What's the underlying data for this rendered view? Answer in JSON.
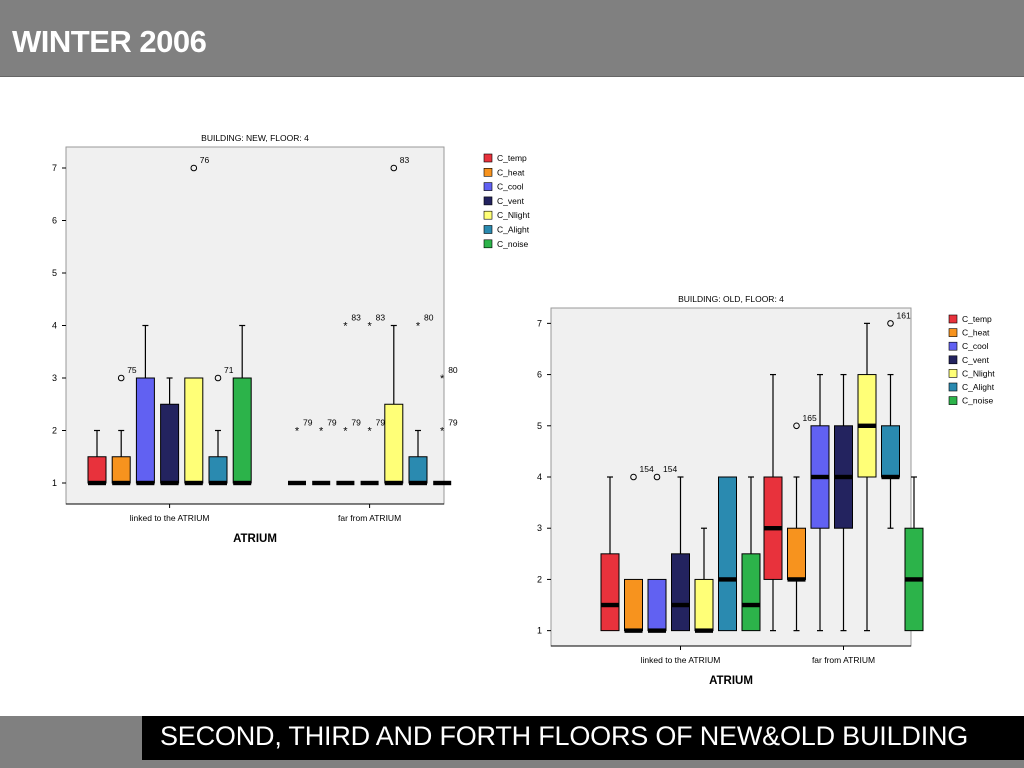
{
  "slide": {
    "title": "WINTER 2006",
    "subtitle": "SECOND, THIRD AND FORTH FLOORS OF NEW&OLD BUILDING"
  },
  "legend": [
    {
      "label": "C_temp",
      "color": "#e8323c"
    },
    {
      "label": "C_heat",
      "color": "#f7931e"
    },
    {
      "label": "C_cool",
      "color": "#6161f2"
    },
    {
      "label": "C_vent",
      "color": "#23235f"
    },
    {
      "label": "C_Nlight",
      "color": "#ffff77"
    },
    {
      "label": "C_Alight",
      "color": "#2a8ab0"
    },
    {
      "label": "C_noise",
      "color": "#2cb34a"
    }
  ],
  "chart_data": [
    {
      "type": "boxplot",
      "title": "BUILDING: NEW, FLOOR: 4",
      "xlabel": "ATRIUM",
      "ylabel": "",
      "categories": [
        "linked to the ATRIUM",
        "far from ATRIUM"
      ],
      "ylim": [
        0.6,
        7.4
      ],
      "yticks": [
        1,
        2,
        3,
        4,
        5,
        6,
        7
      ],
      "series_names": [
        "C_temp",
        "C_heat",
        "C_cool",
        "C_vent",
        "C_Nlight",
        "C_Alight",
        "C_noise"
      ],
      "groups": [
        {
          "category": "linked to the ATRIUM",
          "boxes": [
            {
              "series": "C_temp",
              "min": 1,
              "q1": 1,
              "median": 1,
              "q3": 1.5,
              "max": 2,
              "outliers": []
            },
            {
              "series": "C_heat",
              "min": 1,
              "q1": 1,
              "median": 1,
              "q3": 1.5,
              "max": 2,
              "outliers": [
                {
                  "value": 3,
                  "label": "75",
                  "symbol": "circle"
                }
              ]
            },
            {
              "series": "C_cool",
              "min": 1,
              "q1": 1,
              "median": 1,
              "q3": 3,
              "max": 4,
              "outliers": []
            },
            {
              "series": "C_vent",
              "min": 1,
              "q1": 1,
              "median": 1,
              "q3": 2.5,
              "max": 3,
              "outliers": []
            },
            {
              "series": "C_Nlight",
              "min": 1,
              "q1": 1,
              "median": 1,
              "q3": 3,
              "max": 3,
              "outliers": [
                {
                  "value": 7,
                  "label": "76",
                  "symbol": "circle"
                }
              ]
            },
            {
              "series": "C_Alight",
              "min": 1,
              "q1": 1,
              "median": 1,
              "q3": 1.5,
              "max": 2,
              "outliers": [
                {
                  "value": 3,
                  "label": "71",
                  "symbol": "circle"
                }
              ]
            },
            {
              "series": "C_noise",
              "min": 1,
              "q1": 1,
              "median": 1,
              "q3": 3,
              "max": 4,
              "outliers": []
            }
          ]
        },
        {
          "category": "far from ATRIUM",
          "boxes": [
            {
              "series": "C_temp",
              "min": 1,
              "q1": 1,
              "median": 1,
              "q3": 1,
              "max": 1,
              "outliers": [
                {
                  "value": 2,
                  "label": "79",
                  "symbol": "star"
                }
              ]
            },
            {
              "series": "C_heat",
              "min": 1,
              "q1": 1,
              "median": 1,
              "q3": 1,
              "max": 1,
              "outliers": [
                {
                  "value": 2,
                  "label": "79",
                  "symbol": "star"
                }
              ]
            },
            {
              "series": "C_cool",
              "min": 1,
              "q1": 1,
              "median": 1,
              "q3": 1,
              "max": 1,
              "outliers": [
                {
                  "value": 2,
                  "label": "79",
                  "symbol": "star"
                },
                {
                  "value": 4,
                  "label": "83",
                  "symbol": "star"
                }
              ]
            },
            {
              "series": "C_vent",
              "min": 1,
              "q1": 1,
              "median": 1,
              "q3": 1,
              "max": 1,
              "outliers": [
                {
                  "value": 2,
                  "label": "79",
                  "symbol": "star"
                },
                {
                  "value": 4,
                  "label": "83",
                  "symbol": "star"
                }
              ]
            },
            {
              "series": "C_Nlight",
              "min": 1,
              "q1": 1,
              "median": 1,
              "q3": 2.5,
              "max": 4,
              "outliers": [
                {
                  "value": 7,
                  "label": "83",
                  "symbol": "circle"
                }
              ]
            },
            {
              "series": "C_Alight",
              "min": 1,
              "q1": 1,
              "median": 1,
              "q3": 1.5,
              "max": 2,
              "outliers": [
                {
                  "value": 4,
                  "label": "80",
                  "symbol": "star"
                }
              ]
            },
            {
              "series": "C_noise",
              "min": 1,
              "q1": 1,
              "median": 1,
              "q3": 1,
              "max": 1,
              "outliers": [
                {
                  "value": 2,
                  "label": "79",
                  "symbol": "star"
                },
                {
                  "value": 3,
                  "label": "80",
                  "symbol": "star"
                }
              ]
            }
          ]
        }
      ]
    },
    {
      "type": "boxplot",
      "title": "BUILDING: OLD, FLOOR: 4",
      "xlabel": "ATRIUM",
      "ylabel": "",
      "categories": [
        "linked to the ATRIUM",
        "far from ATRIUM"
      ],
      "ylim": [
        0.7,
        7.3
      ],
      "yticks": [
        1,
        2,
        3,
        4,
        5,
        6,
        7
      ],
      "series_names": [
        "C_temp",
        "C_heat",
        "C_cool",
        "C_vent",
        "C_Nlight",
        "C_Alight",
        "C_noise"
      ],
      "groups": [
        {
          "category": "linked to the ATRIUM",
          "boxes": [
            {
              "series": "C_temp",
              "min": 1,
              "q1": 1,
              "median": 1.5,
              "q3": 2.5,
              "max": 4,
              "outliers": []
            },
            {
              "series": "C_heat",
              "min": 1,
              "q1": 1,
              "median": 1,
              "q3": 2,
              "max": 2,
              "outliers": [
                {
                  "value": 4,
                  "label": "154",
                  "symbol": "circle"
                }
              ]
            },
            {
              "series": "C_cool",
              "min": 1,
              "q1": 1,
              "median": 1,
              "q3": 2,
              "max": 2,
              "outliers": [
                {
                  "value": 4,
                  "label": "154",
                  "symbol": "circle"
                }
              ]
            },
            {
              "series": "C_vent",
              "min": 1,
              "q1": 1,
              "median": 1.5,
              "q3": 2.5,
              "max": 4,
              "outliers": []
            },
            {
              "series": "C_Nlight",
              "min": 1,
              "q1": 1,
              "median": 1,
              "q3": 2,
              "max": 3,
              "outliers": []
            },
            {
              "series": "C_Alight",
              "min": 1,
              "q1": 1,
              "median": 2,
              "q3": 4,
              "max": 4,
              "outliers": []
            },
            {
              "series": "C_noise",
              "min": 1,
              "q1": 1,
              "median": 1.5,
              "q3": 2.5,
              "max": 4,
              "outliers": []
            }
          ]
        },
        {
          "category": "far from ATRIUM",
          "boxes": [
            {
              "series": "C_temp",
              "min": 1,
              "q1": 2,
              "median": 3,
              "q3": 4,
              "max": 6,
              "outliers": []
            },
            {
              "series": "C_heat",
              "min": 1,
              "q1": 2,
              "median": 2,
              "q3": 3,
              "max": 4,
              "outliers": [
                {
                  "value": 5,
                  "label": "165",
                  "symbol": "circle"
                }
              ]
            },
            {
              "series": "C_cool",
              "min": 1,
              "q1": 3,
              "median": 4,
              "q3": 5,
              "max": 6,
              "outliers": []
            },
            {
              "series": "C_vent",
              "min": 1,
              "q1": 3,
              "median": 4,
              "q3": 5,
              "max": 6,
              "outliers": []
            },
            {
              "series": "C_Nlight",
              "min": 1,
              "q1": 4,
              "median": 5,
              "q3": 6,
              "max": 7,
              "outliers": []
            },
            {
              "series": "C_Alight",
              "min": 3,
              "q1": 4,
              "median": 4,
              "q3": 5,
              "max": 6,
              "outliers": [
                {
                  "value": 7,
                  "label": "161",
                  "symbol": "circle"
                }
              ]
            },
            {
              "series": "C_noise",
              "min": 1,
              "q1": 1,
              "median": 2,
              "q3": 3,
              "max": 4,
              "outliers": []
            }
          ]
        }
      ]
    }
  ]
}
